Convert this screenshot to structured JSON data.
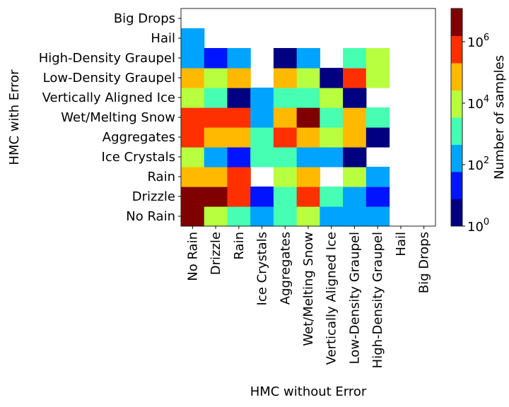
{
  "chart_data": {
    "type": "heatmap",
    "title": "",
    "xlabel": "HMC without Error",
    "ylabel": "HMC with Error",
    "x_categories": [
      "No Rain",
      "Drizzle",
      "Rain",
      "Ice Crystals",
      "Aggregates",
      "Wet/Melting Snow",
      "Vertically Aligned Ice",
      "Low-Density Graupel",
      "High-Density Graupel",
      "Hail",
      "Big Drops"
    ],
    "y_categories": [
      "No Rain",
      "Drizzle",
      "Rain",
      "Ice Crystals",
      "Aggregates",
      "Wet/Melting Snow",
      "Vertically Aligned Ice",
      "Low-Density Graupel",
      "High-Density Graupel",
      "Hail",
      "Big Drops"
    ],
    "value_scale": "log10",
    "note": "values are colour-bin indices (0=lowest ~10^0 to 7=highest ~10^7); null = no samples",
    "bin_log10_edges": [
      0,
      0.885,
      1.77,
      2.655,
      3.54,
      4.425,
      5.31,
      6.195,
      7.08
    ],
    "values": [
      [
        7,
        4,
        3,
        2,
        3,
        4,
        2,
        2,
        2,
        null,
        null
      ],
      [
        7,
        7,
        6,
        1,
        3,
        6,
        3,
        2,
        1,
        null,
        null
      ],
      [
        5,
        5,
        6,
        null,
        4,
        5,
        null,
        4,
        2,
        null,
        null
      ],
      [
        4,
        2,
        1,
        3,
        3,
        2,
        2,
        0,
        null,
        null,
        null
      ],
      [
        6,
        5,
        5,
        3,
        6,
        5,
        4,
        5,
        0,
        null,
        null
      ],
      [
        6,
        6,
        6,
        2,
        5,
        7,
        3,
        5,
        3,
        null,
        null
      ],
      [
        4,
        3,
        0,
        2,
        3,
        3,
        4,
        0,
        null,
        null,
        null
      ],
      [
        5,
        4,
        5,
        null,
        5,
        4,
        0,
        6,
        4,
        null,
        null
      ],
      [
        2,
        1,
        2,
        null,
        0,
        2,
        null,
        3,
        4,
        null,
        null
      ],
      [
        2,
        null,
        null,
        null,
        null,
        null,
        null,
        null,
        null,
        null,
        null
      ],
      [
        null,
        null,
        null,
        null,
        null,
        null,
        null,
        null,
        null,
        null,
        null
      ]
    ],
    "colorbar": {
      "label": "Number of samples",
      "ticks": [
        {
          "base": "10",
          "exp": "0",
          "log10": 0
        },
        {
          "base": "10",
          "exp": "2",
          "log10": 2
        },
        {
          "base": "10",
          "exp": "4",
          "log10": 4
        },
        {
          "base": "10",
          "exp": "6",
          "log10": 6
        }
      ],
      "range_log10": [
        0,
        7.08
      ],
      "colors": [
        "#000080",
        "#0014ff",
        "#00a4ff",
        "#46ffb2",
        "#b8ff40",
        "#ffb900",
        "#ff3000",
        "#800000"
      ]
    },
    "grid": false
  }
}
